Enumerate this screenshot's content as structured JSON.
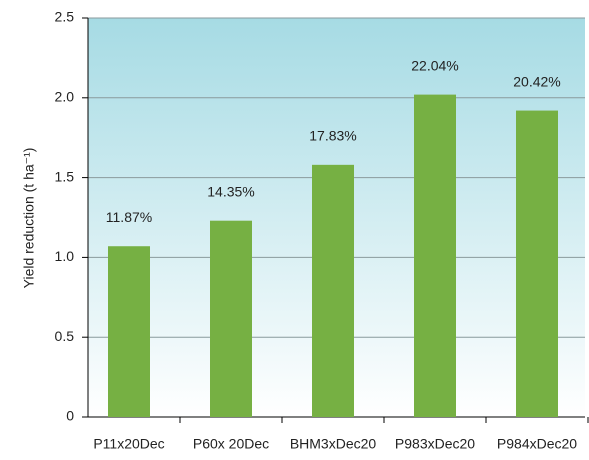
{
  "chart_data": {
    "type": "bar",
    "y_label": "Yield reduction (t ha⁻¹)",
    "categories": [
      "P11x20Dec",
      "P60x 20Dec",
      "BHM3xDec20",
      "P983xDec20",
      "P984xDec20"
    ],
    "values": [
      1.07,
      1.23,
      1.58,
      2.02,
      1.92
    ],
    "annotations": [
      "11.87%",
      "14.35%",
      "17.83%",
      "22.04%",
      "20.42%"
    ],
    "color": "#76b043",
    "ylim": [
      0,
      2.5
    ],
    "yticks": [
      0,
      0.5,
      {
        "value": 1,
        "label": "1.0"
      },
      1.5,
      {
        "value": 2,
        "label": "2.0"
      },
      2.5
    ],
    "grid": true
  }
}
